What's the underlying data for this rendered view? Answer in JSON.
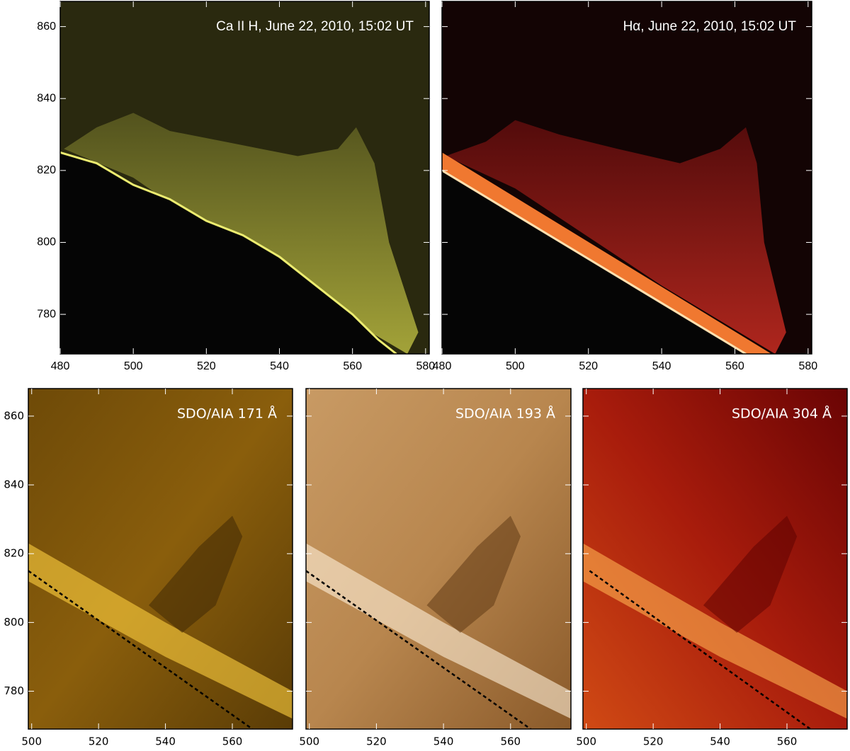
{
  "chart_data": [
    {
      "type": "image",
      "title": "Ca II H, June 22, 2010, 15:02 UT",
      "xlim": [
        480,
        581
      ],
      "ylim": [
        769,
        867
      ],
      "xticks": [
        480,
        500,
        520,
        540,
        560,
        580
      ],
      "yticks": [
        780,
        800,
        820,
        840,
        860
      ]
    },
    {
      "type": "image",
      "title": "Hα, June 22, 2010, 15:02 UT",
      "xlim": [
        480,
        581
      ],
      "ylim": [
        769,
        867
      ],
      "xticks": [
        480,
        500,
        520,
        540,
        560,
        580
      ],
      "yticks": [
        780,
        800,
        820,
        840,
        860
      ]
    },
    {
      "type": "image",
      "title": "SDO/AIA  171 Å",
      "xlim": [
        499,
        578
      ],
      "ylim": [
        769,
        868
      ],
      "xticks": [
        500,
        520,
        540,
        560
      ],
      "yticks": [
        780,
        800,
        820,
        840,
        860
      ]
    },
    {
      "type": "image",
      "title": "SDO/AIA  193 Å",
      "xlim": [
        499,
        578
      ],
      "ylim": [
        769,
        868
      ],
      "xticks": [
        500,
        520,
        540,
        560
      ],
      "yticks": [
        780,
        800,
        820,
        840,
        860
      ]
    },
    {
      "type": "image",
      "title": "SDO/AIA  304 Å",
      "xlim": [
        499,
        578
      ],
      "ylim": [
        769,
        868
      ],
      "xticks": [
        500,
        520,
        540,
        560
      ],
      "yticks": [
        780,
        800,
        820,
        840,
        860
      ]
    }
  ]
}
